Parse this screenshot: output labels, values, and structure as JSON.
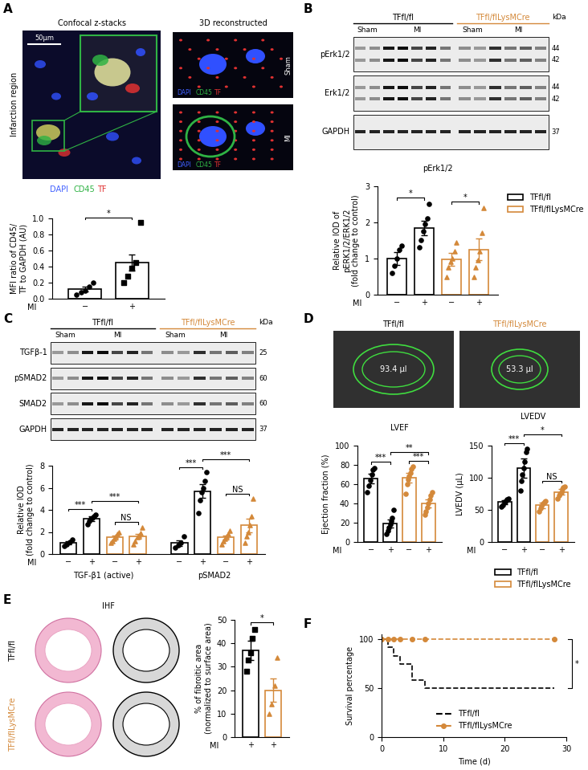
{
  "chart_data": [
    {
      "type": "bar",
      "categories": [
        "−",
        "+"
      ],
      "xlabel": "MI",
      "ylabel": "MFI ratio of CD45/\nTF to GAPDH (AU)",
      "ylim": [
        0,
        1.0
      ],
      "yticks": [
        {
          "value": 0,
          "label": "0.0"
        },
        0.2,
        0.4,
        0.6,
        0.8,
        {
          "value": 1,
          "label": "1.0"
        }
      ],
      "series": [
        {
          "color": "#000000",
          "marker": "circle",
          "values": [
            0.12,
            null
          ],
          "errors": [
            0.03,
            null
          ],
          "points": [
            [
              0.05,
              0.08,
              0.1,
              0.15,
              0.2
            ],
            null
          ]
        },
        {
          "color": "#000000",
          "marker": "square",
          "values": [
            null,
            0.45
          ],
          "errors": [
            null,
            0.1
          ],
          "points": [
            null,
            [
              0.2,
              0.28,
              0.38,
              0.45,
              0.95
            ]
          ]
        }
      ],
      "annotations": [
        {
          "text": "*",
          "between": [
            0,
            1
          ]
        }
      ]
    },
    {
      "type": "bar",
      "title": "pErk1/2",
      "categories": [
        "−",
        "+",
        "−",
        "+"
      ],
      "xlabel": "MI",
      "ylabel": "Relative IOD of\npERK1/2/ERK1/2\n(fold change to control)",
      "ylim": [
        0,
        3
      ],
      "yticks": [
        0,
        1,
        2,
        3
      ],
      "legend": "right",
      "series": [
        {
          "name": "TFfl/fl",
          "color": "#000000",
          "marker": "circle",
          "values": [
            1.0,
            1.85,
            null,
            null
          ],
          "errors": [
            0.17,
            0.2,
            null,
            null
          ],
          "points": [
            [
              0.6,
              0.8,
              1.0,
              1.25,
              1.35
            ],
            [
              1.3,
              1.5,
              1.75,
              1.95,
              2.1,
              2.5
            ],
            null,
            null
          ]
        },
        {
          "name": "TFfl/flLysMCre",
          "color": "#d4893a",
          "marker": "triangle",
          "values": [
            null,
            null,
            0.97,
            1.25
          ],
          "errors": [
            null,
            null,
            0.18,
            0.3
          ],
          "points": [
            null,
            null,
            [
              0.5,
              0.75,
              0.9,
              1.0,
              1.2,
              1.45
            ],
            [
              0.5,
              0.75,
              0.95,
              1.2,
              1.7,
              2.4
            ]
          ]
        }
      ],
      "annotations": [
        {
          "text": "*",
          "between": [
            0,
            1
          ]
        },
        {
          "text": "*",
          "between": [
            2,
            3
          ]
        }
      ]
    },
    {
      "type": "bar",
      "categories": [
        "−",
        "+",
        "−",
        "+",
        "−",
        "+",
        "−",
        "+"
      ],
      "xlabel": "MI",
      "groups": [
        "TGF-β1 (active)",
        "pSMAD2"
      ],
      "ylabel": "Relative IOD\n(fold change to control)",
      "ylim": [
        0,
        8
      ],
      "yticks": [
        0,
        2,
        4,
        6,
        8
      ],
      "series": [
        {
          "color": "#000000",
          "marker": "circle",
          "values": [
            1.0,
            3.2,
            null,
            null,
            1.0,
            5.7,
            null,
            null
          ],
          "errors": [
            0.15,
            0.2,
            null,
            null,
            0.25,
            0.6,
            null,
            null
          ],
          "points": [
            [
              0.7,
              0.9,
              1.1,
              1.3
            ],
            [
              2.7,
              3.0,
              3.2,
              3.3,
              3.4,
              3.6
            ],
            null,
            null,
            [
              0.6,
              0.8,
              1.0,
              1.6
            ],
            [
              3.7,
              4.9,
              5.6,
              6.0,
              6.6,
              7.4
            ],
            null,
            null
          ]
        },
        {
          "color": "#d4893a",
          "marker": "triangle",
          "values": [
            null,
            null,
            1.5,
            1.6,
            null,
            null,
            1.5,
            2.6
          ],
          "errors": [
            null,
            null,
            0.2,
            0.25,
            null,
            null,
            0.2,
            0.6
          ],
          "points": [
            null,
            null,
            [
              1.0,
              1.2,
              1.4,
              1.6,
              1.8,
              2.0
            ],
            [
              0.9,
              1.2,
              1.5,
              1.7,
              1.9,
              2.4
            ],
            null,
            null,
            [
              0.9,
              1.2,
              1.4,
              1.6,
              1.8,
              2.1
            ],
            [
              1.0,
              1.6,
              2.0,
              2.6,
              3.4,
              5.0
            ]
          ]
        }
      ],
      "annotations": [
        {
          "text": "***",
          "between": [
            0,
            1
          ]
        },
        {
          "text": "***",
          "between": [
            1,
            3
          ]
        },
        {
          "text": "NS",
          "between": [
            2,
            3
          ]
        },
        {
          "text": "***",
          "between": [
            4,
            5
          ]
        },
        {
          "text": "***",
          "between": [
            5,
            7
          ]
        },
        {
          "text": "NS",
          "between": [
            6,
            7
          ]
        }
      ]
    },
    {
      "type": "bar",
      "title": "LVEF",
      "categories": [
        "−",
        "+",
        "−",
        "+"
      ],
      "xlabel": "MI",
      "ylabel": "Ejection fraction (%)",
      "ylim": [
        0,
        100
      ],
      "yticks": [
        0,
        20,
        40,
        60,
        80,
        100
      ],
      "series": [
        {
          "color": "#000000",
          "marker": "circle",
          "values": [
            66,
            19,
            null,
            null
          ],
          "errors": [
            5,
            4,
            null,
            null
          ],
          "points": [
            [
              52,
              58,
              64,
              70,
              75,
              77
            ],
            [
              8,
              12,
              15,
              18,
              22,
              25,
              33
            ],
            null,
            null
          ]
        },
        {
          "color": "#d4893a",
          "marker": "circle",
          "values": [
            null,
            null,
            67,
            40
          ],
          "errors": [
            null,
            null,
            5,
            4
          ],
          "points": [
            null,
            null,
            [
              50,
              60,
              65,
              68,
              72,
              76,
              78
            ],
            [
              28,
              32,
              36,
              40,
              44,
              48,
              52
            ]
          ]
        }
      ],
      "annotations": [
        {
          "text": "***",
          "between": [
            0,
            1
          ]
        },
        {
          "text": "**",
          "between": [
            1,
            3
          ]
        },
        {
          "text": "***",
          "between": [
            2,
            3
          ]
        }
      ]
    },
    {
      "type": "bar",
      "title": "LVEDV",
      "categories": [
        "−",
        "+",
        "−",
        "+"
      ],
      "xlabel": "MI",
      "ylabel": "LVEDV (μL)",
      "ylim": [
        0,
        150
      ],
      "yticks": [
        0,
        50,
        100,
        150
      ],
      "legend": "below",
      "series": [
        {
          "name": "TFfl/fl",
          "color": "#000000",
          "marker": "circle",
          "values": [
            62,
            115,
            null,
            null
          ],
          "errors": [
            3,
            15,
            null,
            null
          ],
          "points": [
            [
              55,
              58,
              62,
              63,
              66,
              68
            ],
            [
              80,
              95,
              105,
              115,
              125,
              140,
              145
            ],
            null,
            null
          ]
        },
        {
          "name": "TFfl/flLysMCre",
          "color": "#d4893a",
          "marker": "circle",
          "values": [
            null,
            null,
            57,
            78
          ],
          "errors": [
            null,
            null,
            4,
            4
          ],
          "points": [
            null,
            null,
            [
              48,
              52,
              56,
              60,
              62,
              64
            ],
            [
              68,
              72,
              75,
              78,
              82,
              85,
              86
            ]
          ]
        }
      ],
      "annotations": [
        {
          "text": "***",
          "between": [
            0,
            1
          ]
        },
        {
          "text": "*",
          "between": [
            1,
            3
          ]
        },
        {
          "text": "NS",
          "between": [
            2,
            3
          ]
        }
      ]
    },
    {
      "type": "bar",
      "categories": [
        "+",
        "+"
      ],
      "xlabel": "MI",
      "ylabel": "% of fibroitic area\n(normalized to surface area)",
      "ylim": [
        0,
        50
      ],
      "yticks": [
        0,
        10,
        20,
        30,
        40,
        50
      ],
      "series": [
        {
          "color": "#000000",
          "marker": "square",
          "values": [
            37,
            null
          ],
          "errors": [
            4,
            null
          ],
          "points": [
            [
              28,
              33,
              36,
              42,
              46
            ],
            null
          ]
        },
        {
          "color": "#d4893a",
          "marker": "triangle",
          "values": [
            null,
            20
          ],
          "errors": [
            null,
            5
          ],
          "points": [
            null,
            [
              10,
              14,
              22,
              34
            ]
          ]
        }
      ],
      "annotations": [
        {
          "text": "*",
          "between": [
            0,
            1
          ]
        }
      ]
    },
    {
      "type": "line",
      "x": [
        0,
        1,
        2,
        3,
        5,
        7,
        28
      ],
      "xlabel": "Time (d)",
      "ylabel": "Survival percentage",
      "xlim": [
        0,
        30
      ],
      "xticks": [
        0,
        10,
        20,
        30
      ],
      "ylim": [
        0,
        105
      ],
      "yticks": [
        0,
        50,
        100
      ],
      "legend": "lower center",
      "series": [
        {
          "name": "TFfl/fl",
          "color": "#000000",
          "line_style": "dashed",
          "values": [
            100,
            92,
            83,
            75,
            58,
            50,
            50
          ]
        },
        {
          "name": "TFfl/flLysMCre",
          "color": "#d4893a",
          "line_style": "dashed",
          "marker": "circle",
          "values": [
            100,
            100,
            100,
            100,
            100,
            100,
            100
          ]
        }
      ],
      "annotations": [
        {
          "text": "*",
          "between_series": [
            0,
            1
          ]
        }
      ]
    }
  ],
  "panel_letters": [
    "A",
    "B",
    "C",
    "D",
    "E",
    "F"
  ],
  "confocal": {
    "title": "Confocal z-stacks",
    "side_title": "3D reconstructed",
    "region": "Infarction region",
    "scale_bar": "50µm",
    "views": [
      "Sham",
      "MI"
    ],
    "stains": [
      {
        "text": "DAPI",
        "color": "#4060ff"
      },
      {
        "text": "CD45",
        "color": "#2fb344"
      },
      {
        "text": "TF",
        "color": "#e03131"
      }
    ]
  },
  "blot_b": {
    "groups": [
      "TFfl/fl",
      "TFfl/flLysMCre"
    ],
    "colors": [
      "#000000",
      "#d4893a"
    ],
    "lanes": [
      [
        "Sham",
        "MI"
      ],
      [
        "Sham",
        "MI"
      ]
    ],
    "unit": "kDa",
    "rows": [
      {
        "name": "pErk1/2",
        "kda": [
          "44",
          "42"
        ]
      },
      {
        "name": "Erk1/2",
        "kda": [
          "44",
          "42"
        ]
      },
      {
        "name": "GAPDH",
        "kda": [
          "37"
        ]
      }
    ]
  },
  "blot_c": {
    "groups": [
      "TFfl/fl",
      "TFfl/flLysMCre"
    ],
    "colors": [
      "#000000",
      "#d4893a"
    ],
    "lanes": [
      [
        "Sham",
        "MI"
      ],
      [
        "Sham",
        "MI"
      ]
    ],
    "unit": "kDa",
    "rows": [
      {
        "name": "TGFβ-1",
        "kda": [
          "25"
        ]
      },
      {
        "name": "pSMAD2",
        "kda": [
          "60"
        ]
      },
      {
        "name": "SMAD2",
        "kda": [
          "60"
        ]
      },
      {
        "name": "GAPDH",
        "kda": [
          "37"
        ]
      }
    ]
  },
  "echo": {
    "groups": [
      "TFfl/fl",
      "TFfl/flLysMCre"
    ],
    "colors": [
      "#000000",
      "#d4893a"
    ],
    "volumes": [
      "93.4 µl",
      "53.3 µl"
    ]
  },
  "ihf": {
    "title": "IHF",
    "rows": [
      "TFfl/fl",
      "TFfl/flLysMCre"
    ],
    "colors": [
      "#000000",
      "#d4893a"
    ]
  }
}
